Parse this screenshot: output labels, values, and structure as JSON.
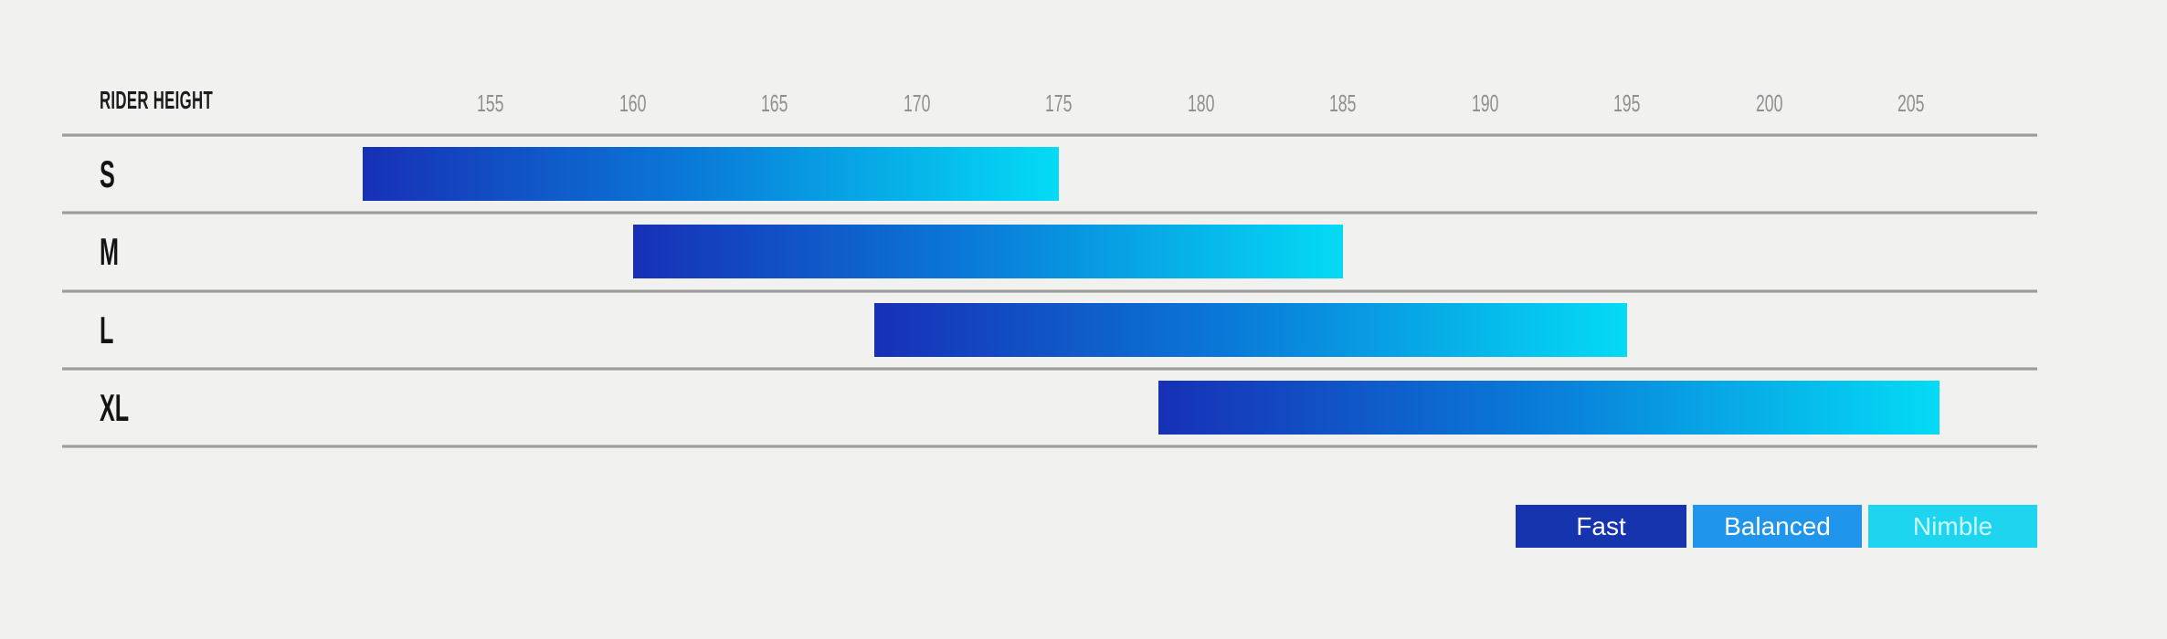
{
  "header": {
    "axis_label": "RIDER HEIGHT"
  },
  "chart_data": {
    "type": "bar",
    "subtype": "horizontal-range",
    "title": "",
    "xlabel": "RIDER HEIGHT",
    "categories": [
      "S",
      "M",
      "L",
      "XL"
    ],
    "series": [
      {
        "name": "rider_height_range_cm",
        "ranges": [
          [
            150.5,
            175
          ],
          [
            160,
            185
          ],
          [
            168.5,
            195
          ],
          [
            178.5,
            206
          ]
        ]
      }
    ],
    "x_ticks": [
      155,
      160,
      165,
      170,
      175,
      180,
      185,
      190,
      195,
      200,
      205
    ],
    "xlim": [
      140,
      209.5
    ],
    "grid": "horizontal row separator lines only",
    "legend_position": "bottom-right",
    "bar_gradient": [
      "#1730b6",
      "#0a79d8",
      "#04dbf5"
    ]
  },
  "legend": {
    "entries": [
      {
        "label": "Fast",
        "color": "#1634ad",
        "text_color": "#ffffff"
      },
      {
        "label": "Balanced",
        "color": "#2095ec",
        "text_color": "#ffffff"
      },
      {
        "label": "Nimble",
        "color": "#1ed5f0",
        "text_color": "#ccf9ff"
      }
    ]
  },
  "colors": {
    "background": "#f1f1f0",
    "separator_line": "#9a9a9a",
    "tick_text": "#8f8f8f",
    "header_text": "#1c1c1c",
    "row_label_text": "#141414"
  }
}
